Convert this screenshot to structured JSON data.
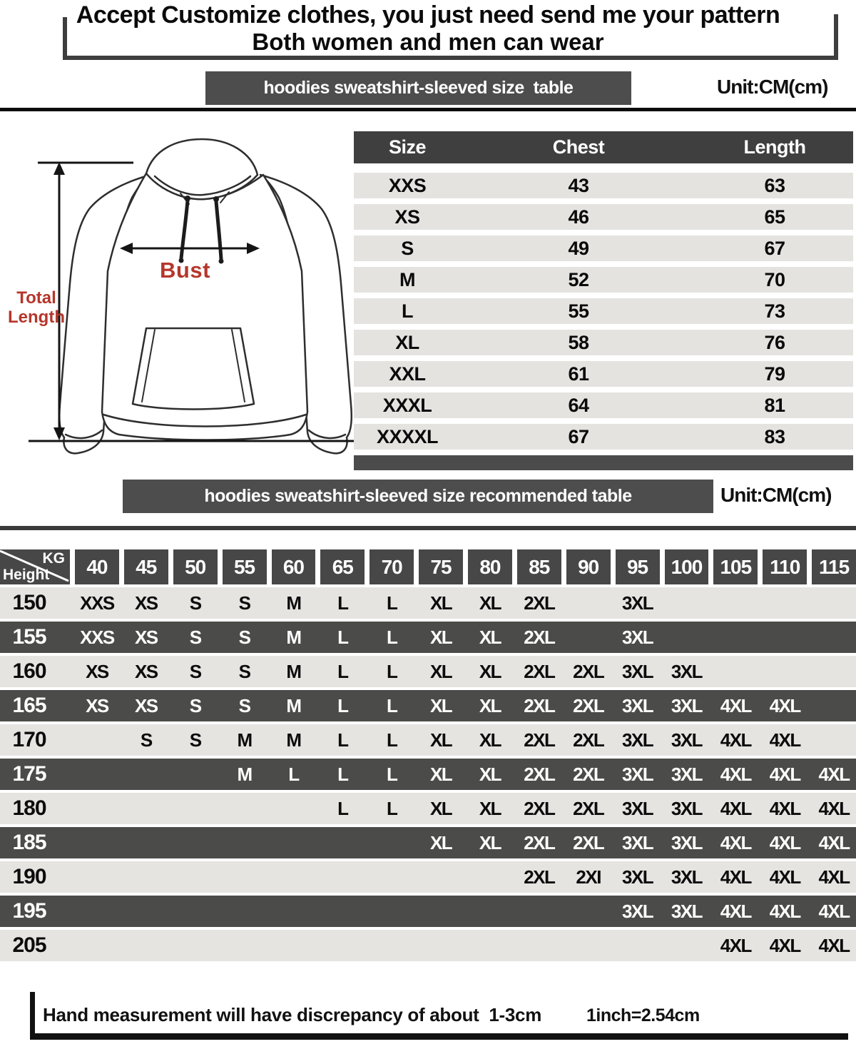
{
  "header": {
    "line1": "Accept Customize clothes, you just need send me your pattern",
    "line2": "Both women and men can wear"
  },
  "size_section": {
    "banner": "hoodies sweatshirt-sleeved size  table",
    "unit": "Unit:CM(cm)"
  },
  "diagram": {
    "bust_label": "Bust",
    "total_length_label": "Total Length"
  },
  "size_table": {
    "columns": [
      "Size",
      "Chest",
      "Length"
    ],
    "rows": [
      [
        "XXS",
        "43",
        "63"
      ],
      [
        "XS",
        "46",
        "65"
      ],
      [
        "S",
        "49",
        "67"
      ],
      [
        "M",
        "52",
        "70"
      ],
      [
        "L",
        "55",
        "73"
      ],
      [
        "XL",
        "58",
        "76"
      ],
      [
        "XXL",
        "61",
        "79"
      ],
      [
        "XXXL",
        "64",
        "81"
      ],
      [
        "XXXXL",
        "67",
        "83"
      ]
    ]
  },
  "recommend_section": {
    "banner": "hoodies sweatshirt-sleeved size recommended table",
    "unit": "Unit:CM(cm)"
  },
  "matrix": {
    "corner_top": "KG",
    "corner_bottom": "Height",
    "weights": [
      "40",
      "45",
      "50",
      "55",
      "60",
      "65",
      "70",
      "75",
      "80",
      "85",
      "90",
      "95",
      "100",
      "105",
      "110",
      "115"
    ],
    "rows": [
      {
        "height": "150",
        "cells": [
          "XXS",
          "XS",
          "S",
          "S",
          "M",
          "L",
          "L",
          "XL",
          "XL",
          "2XL",
          "",
          "3XL",
          "",
          "",
          "",
          ""
        ]
      },
      {
        "height": "155",
        "cells": [
          "XXS",
          "XS",
          "S",
          "S",
          "M",
          "L",
          "L",
          "XL",
          "XL",
          "2XL",
          "",
          "3XL",
          "",
          "",
          "",
          ""
        ]
      },
      {
        "height": "160",
        "cells": [
          "XS",
          "XS",
          "S",
          "S",
          "M",
          "L",
          "L",
          "XL",
          "XL",
          "2XL",
          "2XL",
          "3XL",
          "3XL",
          "",
          "",
          ""
        ]
      },
      {
        "height": "165",
        "cells": [
          "XS",
          "XS",
          "S",
          "S",
          "M",
          "L",
          "L",
          "XL",
          "XL",
          "2XL",
          "2XL",
          "3XL",
          "3XL",
          "4XL",
          "4XL",
          ""
        ]
      },
      {
        "height": "170",
        "cells": [
          "",
          "S",
          "S",
          "M",
          "M",
          "L",
          "L",
          "XL",
          "XL",
          "2XL",
          "2XL",
          "3XL",
          "3XL",
          "4XL",
          "4XL",
          ""
        ]
      },
      {
        "height": "175",
        "cells": [
          "",
          "",
          "",
          "M",
          "L",
          "L",
          "L",
          "XL",
          "XL",
          "2XL",
          "2XL",
          "3XL",
          "3XL",
          "4XL",
          "4XL",
          "4XL"
        ]
      },
      {
        "height": "180",
        "cells": [
          "",
          "",
          "",
          "",
          "",
          "L",
          "L",
          "XL",
          "XL",
          "2XL",
          "2XL",
          "3XL",
          "3XL",
          "4XL",
          "4XL",
          "4XL"
        ]
      },
      {
        "height": "185",
        "cells": [
          "",
          "",
          "",
          "",
          "",
          "",
          "",
          "XL",
          "XL",
          "2XL",
          "2XL",
          "3XL",
          "3XL",
          "4XL",
          "4XL",
          "4XL"
        ]
      },
      {
        "height": "190",
        "cells": [
          "",
          "",
          "",
          "",
          "",
          "",
          "",
          "",
          "",
          "2XL",
          "2XI",
          "3XL",
          "3XL",
          "4XL",
          "4XL",
          "4XL"
        ]
      },
      {
        "height": "195",
        "cells": [
          "",
          "",
          "",
          "",
          "",
          "",
          "",
          "",
          "",
          "",
          "",
          "3XL",
          "3XL",
          "4XL",
          "4XL",
          "4XL"
        ]
      },
      {
        "height": "205",
        "cells": [
          "",
          "",
          "",
          "",
          "",
          "",
          "",
          "",
          "",
          "",
          "",
          "",
          "",
          "4XL",
          "4XL",
          "4XL"
        ]
      }
    ]
  },
  "footer": {
    "note": "Hand measurement will have discrepancy of about  1-3cm",
    "conversion": "1inch=2.54cm"
  },
  "colors": {
    "banner_gray": "#4d4d4d",
    "dark_row": "#4b4b49",
    "light_row": "#e5e4e1",
    "accent_red": "#b5362b"
  }
}
